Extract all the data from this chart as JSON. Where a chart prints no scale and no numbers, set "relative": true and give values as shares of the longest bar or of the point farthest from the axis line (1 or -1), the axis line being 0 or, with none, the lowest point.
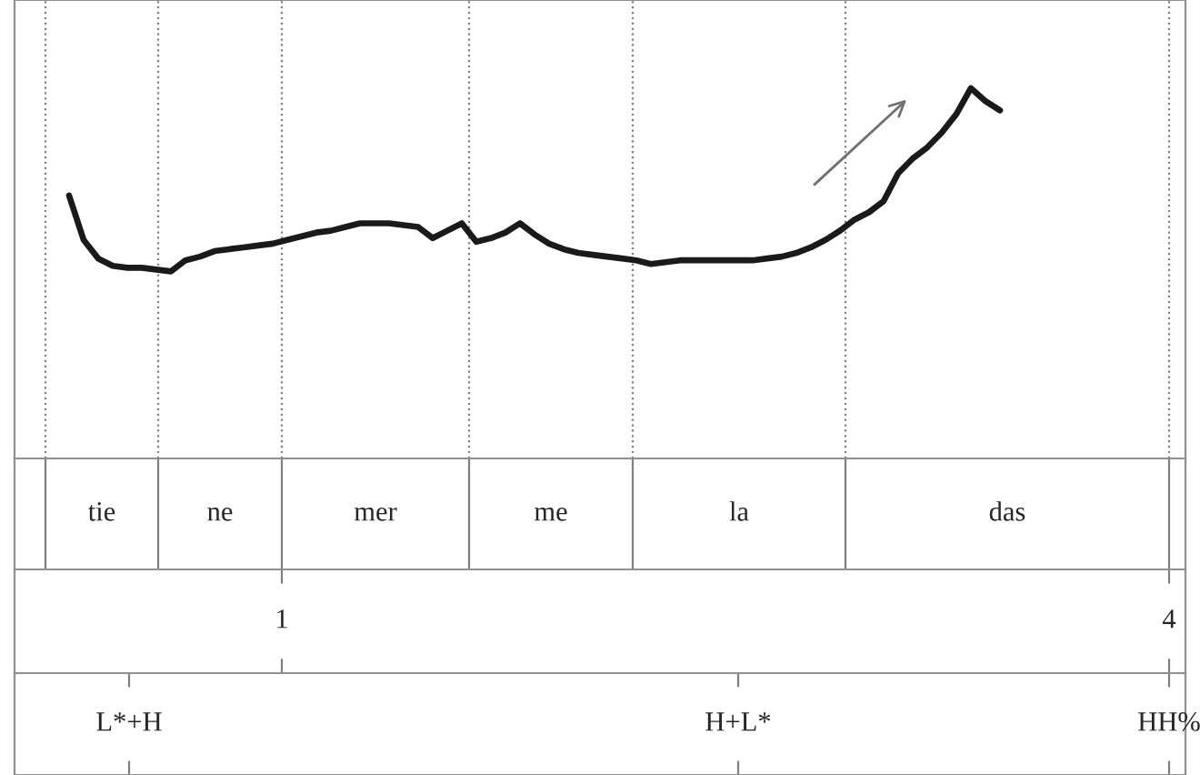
{
  "chart_data": [
    {
      "type": "line",
      "relative": true,
      "categories": [
        null,
        null,
        null,
        null,
        null,
        null,
        null,
        null,
        null,
        null,
        null,
        null,
        null,
        null,
        null,
        null,
        null,
        null,
        null,
        null,
        null,
        null,
        null,
        null,
        null,
        null,
        null,
        null,
        null,
        null,
        null,
        null,
        null,
        null,
        null,
        null,
        null,
        null,
        null,
        null,
        null,
        null,
        null,
        null,
        null,
        null,
        null,
        null,
        null,
        null,
        null,
        null,
        null,
        null,
        null,
        null,
        null,
        null,
        null,
        null,
        null,
        null,
        null,
        null,
        null
      ],
      "series": [
        {
          "color": "#1a1a1a",
          "values": [
            0.71,
            0.59,
            0.54,
            0.52,
            0.515,
            0.515,
            0.51,
            0.505,
            0.535,
            0.545,
            0.56,
            0.565,
            0.57,
            0.575,
            0.58,
            0.59,
            0.6,
            0.61,
            0.615,
            0.625,
            0.635,
            0.635,
            0.635,
            0.63,
            0.625,
            0.595,
            0.615,
            0.635,
            0.585,
            0.595,
            0.61,
            0.635,
            0.605,
            0.58,
            0.565,
            0.555,
            0.55,
            0.545,
            0.54,
            0.535,
            0.525,
            0.53,
            0.535,
            0.535,
            0.535,
            0.535,
            0.535,
            0.535,
            0.54,
            0.545,
            0.555,
            0.57,
            0.59,
            0.615,
            0.645,
            0.665,
            0.695,
            0.77,
            0.81,
            0.84,
            0.88,
            0.93,
            1.0,
            0.965,
            0.94
          ]
        }
      ]
    },
    {
      "type": "other",
      "annotations": [
        "tie",
        "ne",
        "mer",
        "me",
        "la",
        "das"
      ]
    },
    {
      "type": "other",
      "annotations": [
        "1",
        "4"
      ]
    },
    {
      "type": "other",
      "annotations": [
        "L*+H",
        "H+L*",
        "HH%"
      ]
    }
  ]
}
